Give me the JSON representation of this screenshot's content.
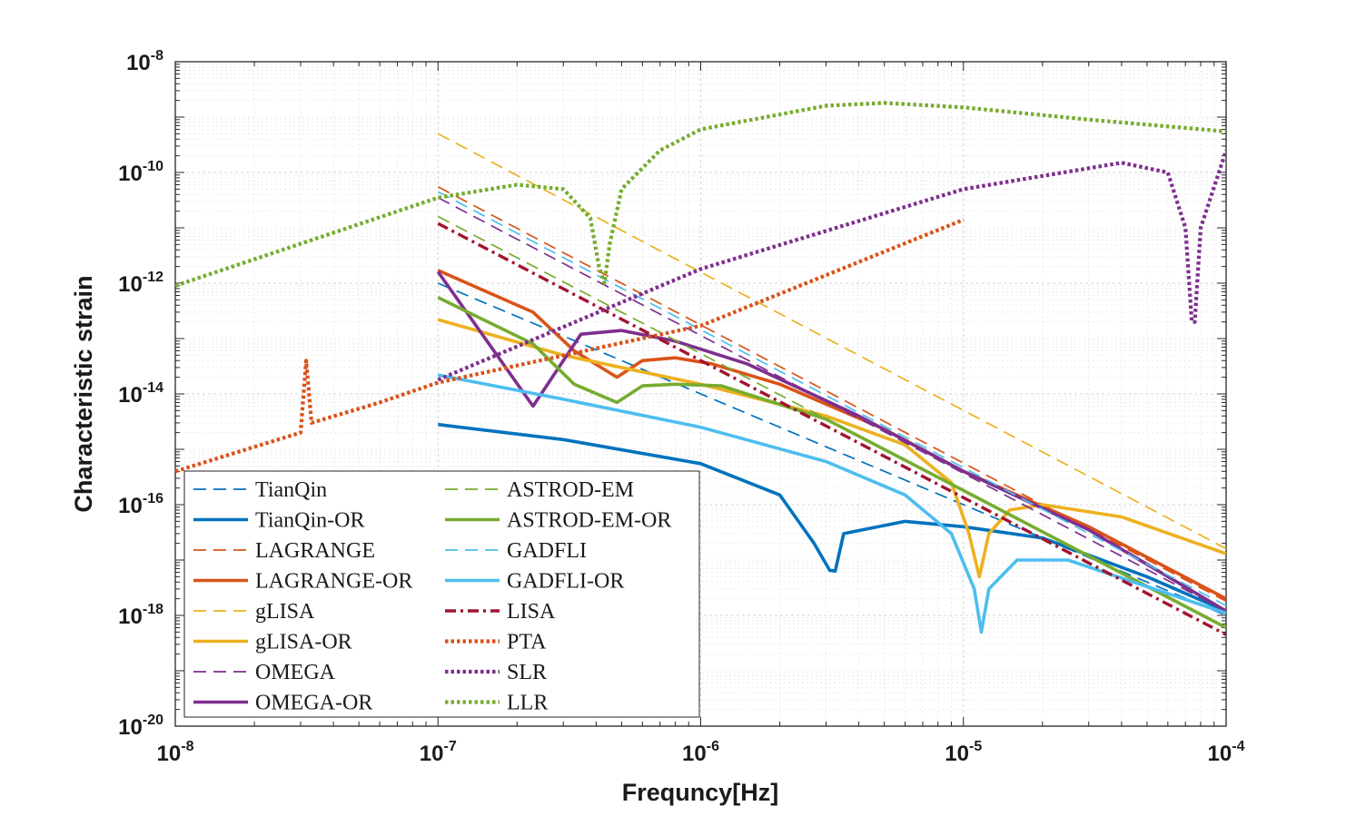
{
  "chart_data": {
    "type": "line",
    "title": "",
    "xlabel": "Frequncy[Hz]",
    "ylabel": "Characteristic strain",
    "xscale": "log",
    "yscale": "log",
    "xlim": [
      1e-08,
      0.0001
    ],
    "ylim": [
      1e-20,
      1e-08
    ],
    "grid": true,
    "minor_grid": true,
    "legend_position": "bottom-left",
    "legend_columns": 2,
    "x_ticks": [
      {
        "base": "10",
        "exp": "-8",
        "value": 1e-08
      },
      {
        "base": "10",
        "exp": "-7",
        "value": 1e-07
      },
      {
        "base": "10",
        "exp": "-6",
        "value": 1e-06
      },
      {
        "base": "10",
        "exp": "-5",
        "value": 1e-05
      },
      {
        "base": "10",
        "exp": "-4",
        "value": 0.0001
      }
    ],
    "y_ticks": [
      {
        "base": "10",
        "exp": "-8",
        "value": 1e-08
      },
      {
        "base": "10",
        "exp": "-10",
        "value": 1e-10
      },
      {
        "base": "10",
        "exp": "-12",
        "value": 1e-12
      },
      {
        "base": "10",
        "exp": "-14",
        "value": 1e-14
      },
      {
        "base": "10",
        "exp": "-16",
        "value": 1e-16
      },
      {
        "base": "10",
        "exp": "-18",
        "value": 1e-18
      },
      {
        "base": "10",
        "exp": "-20",
        "value": 1e-20
      }
    ],
    "series": [
      {
        "name": "TianQin",
        "color": "#0072BD",
        "style": "dashed",
        "points": [
          [
            1e-07,
            1e-12
          ],
          [
            0.0001,
            1e-18
          ]
        ]
      },
      {
        "name": "TianQin-OR",
        "color": "#0072BD",
        "style": "solid",
        "points": [
          [
            1e-07,
            2.8e-15
          ],
          [
            3e-07,
            1.5e-15
          ],
          [
            1e-06,
            5.5e-16
          ],
          [
            2e-06,
            1.5e-16
          ],
          [
            2.7e-06,
            2e-17
          ],
          [
            3.1e-06,
            6.5e-18
          ],
          [
            3.25e-06,
            6.3e-18
          ],
          [
            3.5e-06,
            3e-17
          ],
          [
            6e-06,
            5e-17
          ],
          [
            1e-05,
            4e-17
          ],
          [
            2e-05,
            2.5e-17
          ],
          [
            5e-05,
            5e-18
          ],
          [
            0.0001,
            1.2e-18
          ]
        ]
      },
      {
        "name": "LAGRANGE",
        "color": "#D95319",
        "style": "dashed",
        "points": [
          [
            1e-07,
            5.5e-11
          ],
          [
            0.0001,
            1.8e-18
          ]
        ]
      },
      {
        "name": "LAGRANGE-OR",
        "color": "#D95319",
        "style": "solid",
        "points": [
          [
            1e-07,
            1.7e-12
          ],
          [
            2.3e-07,
            3e-13
          ],
          [
            3.3e-07,
            6e-14
          ],
          [
            4.8e-07,
            2e-14
          ],
          [
            6e-07,
            4e-14
          ],
          [
            8e-07,
            4.5e-14
          ],
          [
            1.1e-06,
            3.5e-14
          ],
          [
            2e-06,
            1.5e-14
          ],
          [
            5e-06,
            2.3e-15
          ],
          [
            1e-05,
            4e-16
          ],
          [
            3e-05,
            4e-17
          ],
          [
            0.0001,
            2e-18
          ]
        ]
      },
      {
        "name": "gLISA",
        "color": "#EDB120",
        "style": "dashed",
        "points": [
          [
            1e-07,
            5e-10
          ],
          [
            0.0001,
            1.6e-17
          ]
        ]
      },
      {
        "name": "gLISA-OR",
        "color": "#EDB120",
        "style": "solid",
        "points": [
          [
            1e-07,
            2.2e-13
          ],
          [
            3e-07,
            5e-14
          ],
          [
            1e-06,
            1.5e-14
          ],
          [
            3e-06,
            4e-15
          ],
          [
            6e-06,
            1.2e-15
          ],
          [
            9e-06,
            2.5e-16
          ],
          [
            1.05e-05,
            3e-17
          ],
          [
            1.15e-05,
            5e-18
          ],
          [
            1.25e-05,
            3e-17
          ],
          [
            1.5e-05,
            8e-17
          ],
          [
            2e-05,
            1e-16
          ],
          [
            4e-05,
            6e-17
          ],
          [
            0.0001,
            1.3e-17
          ]
        ]
      },
      {
        "name": "OMEGA",
        "color": "#7E2F8E",
        "style": "dashed",
        "points": [
          [
            1e-07,
            3.5e-11
          ],
          [
            0.0001,
            1.2e-18
          ]
        ]
      },
      {
        "name": "OMEGA-OR",
        "color": "#7E2F8E",
        "style": "solid",
        "points": [
          [
            1e-07,
            1.6e-12
          ],
          [
            2.3e-07,
            6e-15
          ],
          [
            3.5e-07,
            1.2e-13
          ],
          [
            5e-07,
            1.4e-13
          ],
          [
            8e-07,
            9e-14
          ],
          [
            1.5e-06,
            3.5e-14
          ],
          [
            4e-06,
            4e-15
          ],
          [
            1e-05,
            4e-16
          ],
          [
            3e-05,
            3.5e-17
          ],
          [
            0.0001,
            1.2e-18
          ]
        ]
      },
      {
        "name": "ASTROD-EM",
        "color": "#77AC30",
        "style": "dashed",
        "points": [
          [
            1e-07,
            1.6e-11
          ],
          [
            0.0001,
            6e-19
          ]
        ]
      },
      {
        "name": "ASTROD-EM-OR",
        "color": "#77AC30",
        "style": "solid",
        "points": [
          [
            1e-07,
            5.5e-13
          ],
          [
            2.3e-07,
            8e-14
          ],
          [
            3.3e-07,
            1.5e-14
          ],
          [
            4.8e-07,
            7e-15
          ],
          [
            6e-07,
            1.4e-14
          ],
          [
            8e-07,
            1.5e-14
          ],
          [
            1.2e-06,
            1.4e-14
          ],
          [
            3e-06,
            3.5e-15
          ],
          [
            1e-05,
            1.8e-16
          ],
          [
            0.0001,
            6e-19
          ]
        ]
      },
      {
        "name": "GADFLI",
        "color": "#4DBEEE",
        "style": "dashed",
        "points": [
          [
            1e-07,
            4.5e-11
          ],
          [
            0.0001,
            1.5e-18
          ]
        ]
      },
      {
        "name": "GADFLI-OR",
        "color": "#4DBEEE",
        "style": "solid",
        "points": [
          [
            1e-07,
            2.2e-14
          ],
          [
            3e-07,
            8e-15
          ],
          [
            1e-06,
            2.5e-15
          ],
          [
            3e-06,
            6e-16
          ],
          [
            6e-06,
            1.5e-16
          ],
          [
            9e-06,
            3e-17
          ],
          [
            1.1e-05,
            3e-18
          ],
          [
            1.17e-05,
            5e-19
          ],
          [
            1.25e-05,
            3e-18
          ],
          [
            1.6e-05,
            1e-17
          ],
          [
            2.5e-05,
            1e-17
          ],
          [
            0.0001,
            1.1e-18
          ]
        ]
      },
      {
        "name": "LISA",
        "color": "#A2142F",
        "style": "dashdot",
        "points": [
          [
            1e-07,
            1.2e-11
          ],
          [
            0.0001,
            4.5e-19
          ]
        ]
      },
      {
        "name": "PTA",
        "color": "#D95319",
        "style": "dotted",
        "points": [
          [
            1e-08,
            4e-16
          ],
          [
            3e-08,
            2e-15
          ],
          [
            3.15e-08,
            4e-14
          ],
          [
            3.3e-08,
            3e-15
          ],
          [
            6e-08,
            7e-15
          ],
          [
            1e-07,
            1.6e-14
          ],
          [
            1e-06,
            1.7e-13
          ],
          [
            1e-05,
            1.4e-11
          ]
        ]
      },
      {
        "name": "SLR",
        "color": "#7E2F8E",
        "style": "dotted",
        "points": [
          [
            1e-07,
            1.8e-14
          ],
          [
            1e-06,
            1.8e-12
          ],
          [
            1e-05,
            5e-11
          ],
          [
            4e-05,
            1.5e-10
          ],
          [
            6e-05,
            1e-10
          ],
          [
            7e-05,
            1e-11
          ],
          [
            7.4e-05,
            2e-13
          ],
          [
            7.6e-05,
            2e-13
          ],
          [
            8e-05,
            1e-11
          ],
          [
            0.0001,
            2.5e-10
          ]
        ]
      },
      {
        "name": "LLR",
        "color": "#77AC30",
        "style": "dotted",
        "points": [
          [
            1e-08,
            9e-13
          ],
          [
            1e-07,
            3.5e-11
          ],
          [
            2e-07,
            6e-11
          ],
          [
            3e-07,
            5e-11
          ],
          [
            3.8e-07,
            1.5e-11
          ],
          [
            4.1e-07,
            2e-12
          ],
          [
            4.3e-07,
            1e-12
          ],
          [
            4.5e-07,
            5e-12
          ],
          [
            5e-07,
            5e-11
          ],
          [
            7e-07,
            2.5e-10
          ],
          [
            1e-06,
            6e-10
          ],
          [
            3e-06,
            1.6e-09
          ],
          [
            5e-06,
            1.8e-09
          ],
          [
            1e-05,
            1.5e-09
          ],
          [
            3e-05,
            9e-10
          ],
          [
            0.0001,
            5.5e-10
          ]
        ]
      }
    ]
  }
}
